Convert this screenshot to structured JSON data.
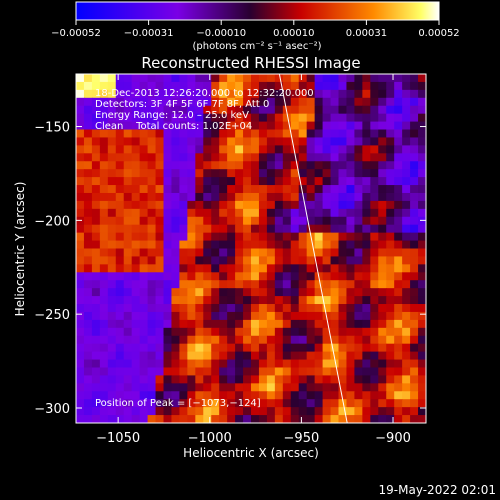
{
  "chart_data": {
    "type": "heatmap",
    "title": "Reconstructed RHESSI Image",
    "xlabel": "Heliocentric X (arcsec)",
    "ylabel": "Heliocentric Y (arcsec)",
    "xlim": [
      -1073,
      -882
    ],
    "ylim": [
      -308,
      -122
    ],
    "xticks": [
      -1050,
      -1000,
      -950,
      -900
    ],
    "yticks": [
      -150,
      -200,
      -250,
      -300
    ],
    "xtick_labels": [
      "−1050",
      "−1000",
      "−950",
      "−900"
    ],
    "ytick_labels": [
      "−150",
      "−200",
      "−250",
      "−300"
    ],
    "colorbar": {
      "range": [
        -0.00052,
        0.00052
      ],
      "tick_labels": [
        "−0.00052",
        "−0.00031",
        "−0.00010",
        "0.00010",
        "0.00031",
        "0.00052"
      ],
      "units": "(photons cm⁻² s⁻¹ asec⁻²)"
    },
    "annotations": [
      "18-Dec-2013 12:26:20.000 to 12:32:20.000",
      "Detectors: 3F 4F 5F 6F 7F 8F, Att 0",
      "Energy Range: 12.0 – 25.0 keV",
      "Clean    Total counts: 1.02E+04"
    ],
    "peak_label": "Position of Peak = [−1073,−124]",
    "limb_line": {
      "x": [
        -962,
        -925
      ],
      "y": [
        -122,
        -308
      ]
    },
    "colors": [
      "#0000ff",
      "#7a00e6",
      "#2a0030",
      "#c80000",
      "#ff6a00",
      "#ffff66",
      "#ffffff"
    ]
  },
  "footer": {
    "timestamp": "19-May-2022 02:01"
  }
}
